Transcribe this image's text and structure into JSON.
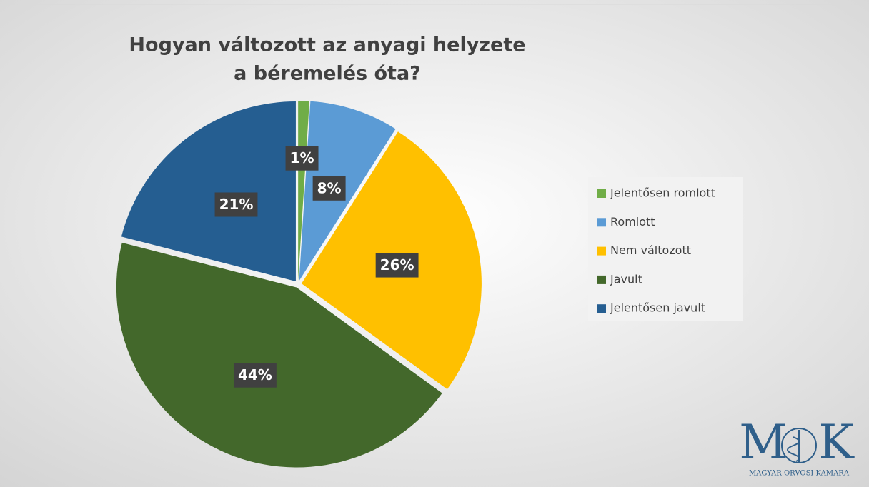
{
  "chart_data": {
    "type": "pie",
    "title": [
      "Hogyan változott az anyagi helyzete",
      "a béremelés óta?"
    ],
    "categories": [
      "Jelentősen romlott",
      "Romlott",
      "Nem változott",
      "Javult",
      "Jelentősen javult"
    ],
    "values": [
      1,
      8,
      26,
      44,
      21
    ],
    "value_labels": [
      "1%",
      "8%",
      "26%",
      "44%",
      "21%"
    ],
    "colors": [
      "#70ad47",
      "#5b9bd5",
      "#ffc000",
      "#43682b",
      "#255e91"
    ],
    "legend": "right"
  },
  "logo": {
    "letters": [
      "M",
      "K"
    ],
    "caption": "MAGYAR ORVOSI KAMARA"
  }
}
